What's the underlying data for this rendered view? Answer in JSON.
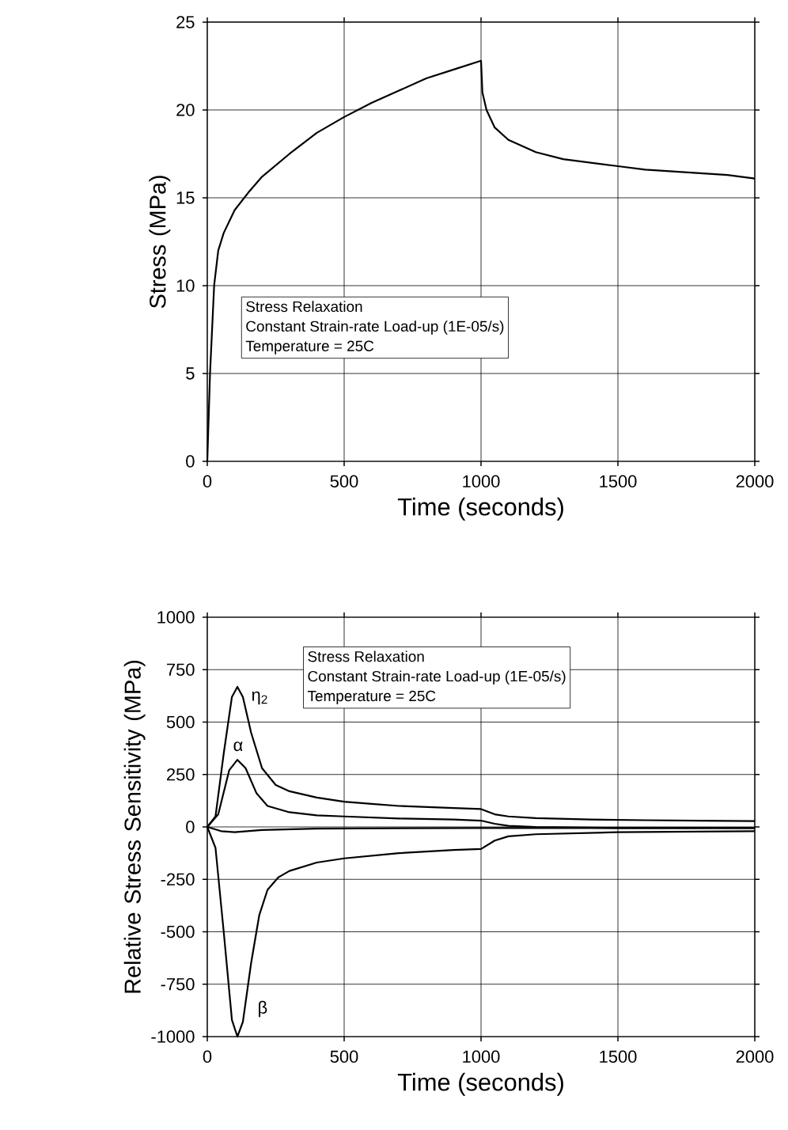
{
  "chart_data": [
    {
      "type": "line",
      "xlabel": "Time (seconds)",
      "ylabel": "Stress (MPa)",
      "xlim": [
        0,
        2000
      ],
      "ylim": [
        0,
        25
      ],
      "xticks": [
        0,
        500,
        1000,
        1500,
        2000
      ],
      "yticks": [
        0,
        5,
        10,
        15,
        20,
        25
      ],
      "grid": true,
      "x": [
        0,
        10,
        25,
        40,
        60,
        100,
        150,
        200,
        300,
        400,
        500,
        600,
        700,
        800,
        900,
        1000,
        1005,
        1020,
        1050,
        1100,
        1200,
        1300,
        1400,
        1500,
        1600,
        1700,
        1800,
        1900,
        2000
      ],
      "series": [
        {
          "color": "#000000",
          "values": [
            0,
            5,
            10,
            12,
            13,
            14.3,
            15.3,
            16.2,
            17.5,
            18.7,
            19.6,
            20.4,
            21.1,
            21.8,
            22.3,
            22.8,
            21,
            20,
            19,
            18.3,
            17.6,
            17.2,
            17,
            16.8,
            16.6,
            16.5,
            16.4,
            16.3,
            16.1
          ]
        }
      ],
      "annotations": [
        "Stress Relaxation",
        "Constant Strain-rate Load-up (1E-05/s)",
        "Temperature = 25C"
      ]
    },
    {
      "type": "line",
      "xlabel": "Time (seconds)",
      "ylabel": "Relative Stress Sensitivity (MPa)",
      "xlim": [
        0,
        2000
      ],
      "ylim": [
        -1000,
        1000
      ],
      "xticks": [
        0,
        500,
        1000,
        1500,
        2000
      ],
      "yticks": [
        -1000,
        -750,
        -500,
        -250,
        0,
        250,
        500,
        750,
        1000
      ],
      "grid": true,
      "series": [
        {
          "name": "η$_{2}$",
          "color": "#000000",
          "x": [
            0,
            30,
            60,
            90,
            110,
            130,
            160,
            200,
            250,
            300,
            400,
            500,
            600,
            700,
            800,
            900,
            1000,
            1050,
            1100,
            1200,
            1400,
            1600,
            1800,
            2000
          ],
          "values": [
            0,
            50,
            350,
            620,
            668,
            620,
            450,
            280,
            200,
            170,
            140,
            120,
            110,
            100,
            95,
            90,
            85,
            60,
            50,
            42,
            35,
            32,
            30,
            28
          ]
        },
        {
          "name": "α",
          "color": "#000000",
          "x": [
            0,
            40,
            80,
            110,
            140,
            180,
            220,
            300,
            400,
            500,
            700,
            900,
            1000,
            1050,
            1100,
            1200,
            1500,
            2000
          ],
          "values": [
            0,
            60,
            270,
            320,
            280,
            160,
            100,
            70,
            55,
            50,
            40,
            35,
            30,
            15,
            5,
            0,
            -5,
            -5
          ]
        },
        {
          "color": "#000000",
          "x": [
            0,
            50,
            100,
            200,
            400,
            1000,
            2000
          ],
          "values": [
            0,
            -20,
            -25,
            -15,
            -8,
            -5,
            -5
          ]
        },
        {
          "name": "β",
          "color": "#000000",
          "x": [
            0,
            30,
            60,
            90,
            110,
            130,
            160,
            190,
            220,
            260,
            300,
            400,
            500,
            700,
            900,
            1000,
            1050,
            1100,
            1200,
            1500,
            2000
          ],
          "values": [
            0,
            -100,
            -500,
            -920,
            -1000,
            -930,
            -650,
            -420,
            -300,
            -240,
            -210,
            -170,
            -150,
            -125,
            -110,
            -105,
            -65,
            -45,
            -35,
            -25,
            -20
          ]
        }
      ],
      "annotations": [
        "Stress Relaxation",
        "Constant Strain-rate Load-up (1E-05/s)",
        "Temperature = 25C"
      ]
    }
  ]
}
